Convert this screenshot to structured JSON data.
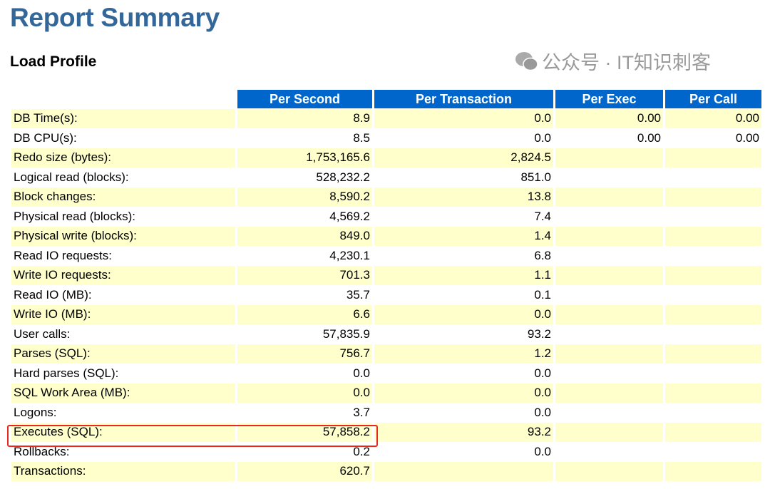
{
  "title": "Report Summary",
  "section": "Load Profile",
  "headers": [
    "",
    "Per Second",
    "Per Transaction",
    "Per Exec",
    "Per Call"
  ],
  "rows": [
    [
      "DB Time(s):",
      "8.9",
      "0.0",
      "0.00",
      "0.00"
    ],
    [
      "DB CPU(s):",
      "8.5",
      "0.0",
      "0.00",
      "0.00"
    ],
    [
      "Redo size (bytes):",
      "1,753,165.6",
      "2,824.5",
      "",
      ""
    ],
    [
      "Logical read (blocks):",
      "528,232.2",
      "851.0",
      "",
      ""
    ],
    [
      "Block changes:",
      "8,590.2",
      "13.8",
      "",
      ""
    ],
    [
      "Physical read (blocks):",
      "4,569.2",
      "7.4",
      "",
      ""
    ],
    [
      "Physical write (blocks):",
      "849.0",
      "1.4",
      "",
      ""
    ],
    [
      "Read IO requests:",
      "4,230.1",
      "6.8",
      "",
      ""
    ],
    [
      "Write IO requests:",
      "701.3",
      "1.1",
      "",
      ""
    ],
    [
      "Read IO (MB):",
      "35.7",
      "0.1",
      "",
      ""
    ],
    [
      "Write IO (MB):",
      "6.6",
      "0.0",
      "",
      ""
    ],
    [
      "User calls:",
      "57,835.9",
      "93.2",
      "",
      ""
    ],
    [
      "Parses (SQL):",
      "756.7",
      "1.2",
      "",
      ""
    ],
    [
      "Hard parses (SQL):",
      "0.0",
      "0.0",
      "",
      ""
    ],
    [
      "SQL Work Area (MB):",
      "0.0",
      "0.0",
      "",
      ""
    ],
    [
      "Logons:",
      "3.7",
      "0.0",
      "",
      ""
    ],
    [
      "Executes (SQL):",
      "57,858.2",
      "93.2",
      "",
      ""
    ],
    [
      "Rollbacks:",
      "0.2",
      "0.0",
      "",
      ""
    ],
    [
      "Transactions:",
      "620.7",
      "",
      "",
      ""
    ]
  ],
  "highlight_color": "#e8281e",
  "header_color": "#0066cc",
  "stripe_color": "#ffffcc",
  "watermark": "公众号 · IT知识刺客"
}
